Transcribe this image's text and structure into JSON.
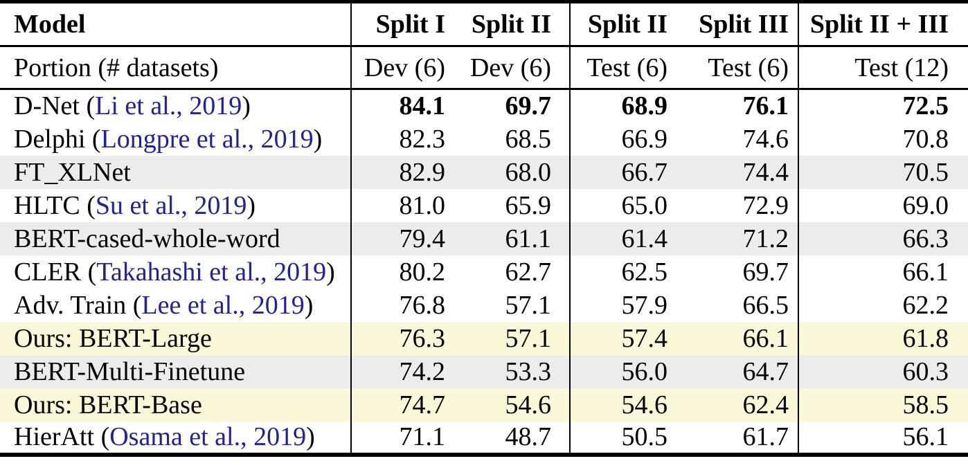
{
  "colors": {
    "citation": "#21219a",
    "row_bg": {
      "white": "#ffffff",
      "gray": "#ececec",
      "yellow": "#faf8d7"
    },
    "rule": "#000000"
  },
  "table": {
    "type": "table",
    "header_row1": {
      "model": "Model",
      "cols": [
        "Split I",
        "Split II",
        "Split II",
        "Split III",
        "Split II + III"
      ]
    },
    "header_row2": {
      "model": "Portion (# datasets)",
      "cols": [
        "Dev (6)",
        "Dev (6)",
        "Test (6)",
        "Test (6)",
        "Test (12)"
      ]
    },
    "rows": [
      {
        "model": "D-Net (",
        "citation": "Li et al., 2019",
        "suffix": ")",
        "values": [
          "84.1",
          "69.7",
          "68.9",
          "76.1",
          "72.5"
        ],
        "bold": true,
        "bg": "white"
      },
      {
        "model": "Delphi (",
        "citation": "Longpre et al., 2019",
        "suffix": ")",
        "values": [
          "82.3",
          "68.5",
          "66.9",
          "74.6",
          "70.8"
        ],
        "bold": false,
        "bg": "white"
      },
      {
        "model": "FT_XLNet",
        "citation": null,
        "suffix": "",
        "values": [
          "82.9",
          "68.0",
          "66.7",
          "74.4",
          "70.5"
        ],
        "bold": false,
        "bg": "gray"
      },
      {
        "model": "HLTC (",
        "citation": "Su et al., 2019",
        "suffix": ")",
        "values": [
          "81.0",
          "65.9",
          "65.0",
          "72.9",
          "69.0"
        ],
        "bold": false,
        "bg": "white"
      },
      {
        "model": "BERT-cased-whole-word",
        "citation": null,
        "suffix": "",
        "values": [
          "79.4",
          "61.1",
          "61.4",
          "71.2",
          "66.3"
        ],
        "bold": false,
        "bg": "gray"
      },
      {
        "model": "CLER (",
        "citation": "Takahashi et al., 2019",
        "suffix": ")",
        "values": [
          "80.2",
          "62.7",
          "62.5",
          "69.7",
          "66.1"
        ],
        "bold": false,
        "bg": "white"
      },
      {
        "model": "Adv. Train (",
        "citation": "Lee et al., 2019",
        "suffix": ")",
        "values": [
          "76.8",
          "57.1",
          "57.9",
          "66.5",
          "62.2"
        ],
        "bold": false,
        "bg": "white"
      },
      {
        "model": "Ours: BERT-Large",
        "citation": null,
        "suffix": "",
        "values": [
          "76.3",
          "57.1",
          "57.4",
          "66.1",
          "61.8"
        ],
        "bold": false,
        "bg": "yellow"
      },
      {
        "model": "BERT-Multi-Finetune",
        "citation": null,
        "suffix": "",
        "values": [
          "74.2",
          "53.3",
          "56.0",
          "64.7",
          "60.3"
        ],
        "bold": false,
        "bg": "gray"
      },
      {
        "model": "Ours: BERT-Base",
        "citation": null,
        "suffix": "",
        "values": [
          "74.7",
          "54.6",
          "54.6",
          "62.4",
          "58.5"
        ],
        "bold": false,
        "bg": "yellow"
      },
      {
        "model": "HierAtt (",
        "citation": "Osama et al., 2019",
        "suffix": ")",
        "values": [
          "71.1",
          "48.7",
          "50.5",
          "61.7",
          "56.1"
        ],
        "bold": false,
        "bg": "white"
      }
    ]
  }
}
